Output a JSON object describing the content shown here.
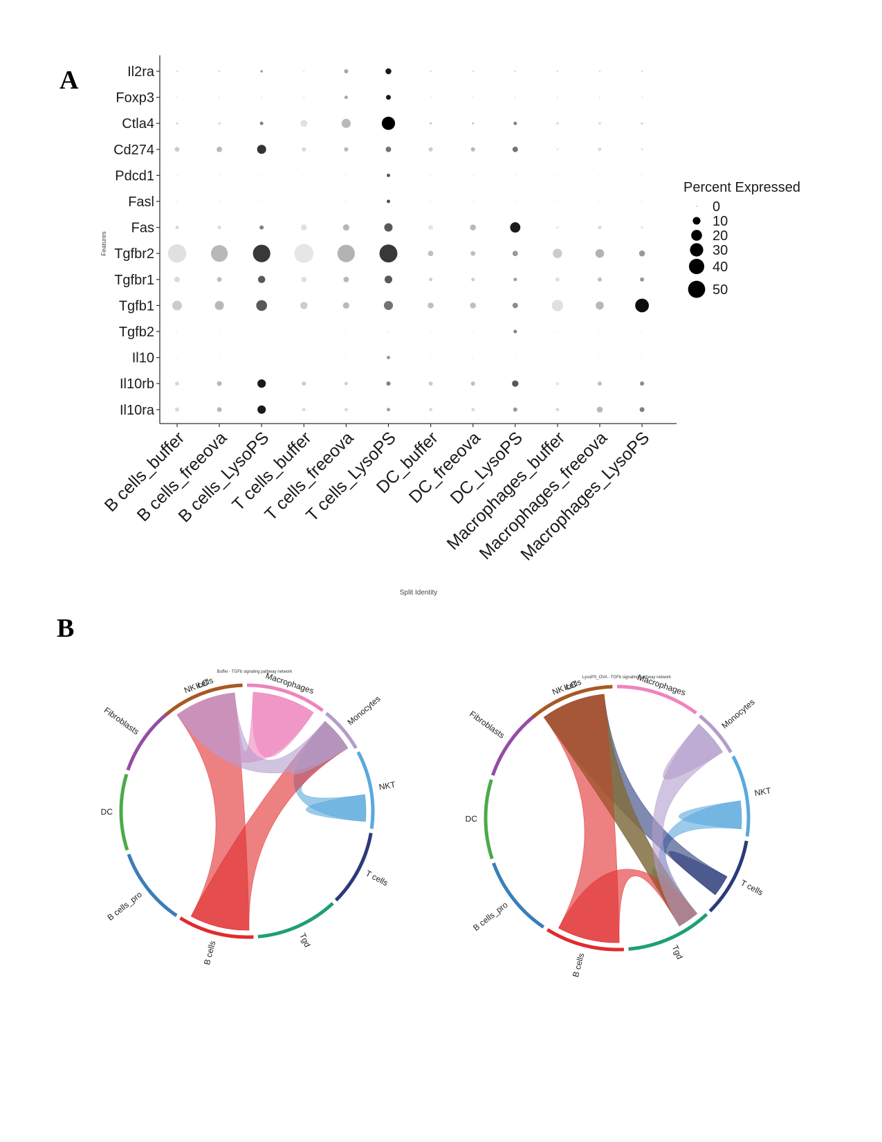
{
  "panels": {
    "a": "A",
    "b": "B"
  },
  "chart_data": [
    {
      "type": "dotplot",
      "panel": "A",
      "xlabel": "Split Identity",
      "ylabel": "Features",
      "categories": [
        "B cells_buffer",
        "B cells_freeova",
        "B cells_LysoPS",
        "T cells_buffer",
        "T cells_freeova",
        "T cells_LysoPS",
        "DC_buffer",
        "DC_freeova",
        "DC_LysoPS",
        "Macrophages_buffer",
        "Macrophages_freeova",
        "Macrophages_LysoPS"
      ],
      "features": [
        "Il2ra",
        "Foxp3",
        "Ctla4",
        "Cd274",
        "Pdcd1",
        "Fasl",
        "Fas",
        "Tgfbr2",
        "Tgfbr1",
        "Tgfb1",
        "Tgfb2",
        "Il10",
        "Il10rb",
        "Il10ra"
      ],
      "legend": {
        "title": "Percent Expressed",
        "sizes": [
          0,
          10,
          20,
          30,
          40,
          50
        ]
      },
      "grid": false,
      "percent_expressed": [
        [
          0.5,
          0.5,
          1,
          0.5,
          3,
          6,
          0.5,
          0.5,
          0.5,
          0.5,
          0.5,
          0.5
        ],
        [
          0.3,
          0.3,
          0.3,
          0.3,
          2,
          4,
          0.3,
          0.3,
          0.3,
          0.3,
          0.3,
          0.3
        ],
        [
          1,
          1,
          2,
          8,
          14,
          30,
          1,
          1,
          2,
          1,
          1,
          1
        ],
        [
          4,
          5,
          14,
          3,
          3,
          5,
          3,
          3,
          5,
          1,
          2,
          1
        ],
        [
          0.2,
          0.2,
          0.2,
          0.2,
          0.3,
          2,
          0.2,
          0.2,
          0.2,
          0.2,
          0.2,
          0.2
        ],
        [
          0.2,
          0.2,
          0.2,
          0.2,
          0.3,
          2,
          0.2,
          0.2,
          0.2,
          0.2,
          0.2,
          0.2
        ],
        [
          2,
          2,
          3,
          6,
          7,
          12,
          4,
          6,
          18,
          1,
          2,
          1
        ],
        [
          57,
          48,
          52,
          62,
          52,
          55,
          5,
          4,
          5,
          15,
          13,
          6
        ],
        [
          5,
          4,
          9,
          5,
          5,
          10,
          2,
          2,
          2,
          3,
          3,
          3
        ],
        [
          16,
          14,
          20,
          9,
          7,
          14,
          6,
          6,
          5,
          22,
          11,
          32
        ],
        [
          0.2,
          0.2,
          0.2,
          0.2,
          0.2,
          0.3,
          0.2,
          0.2,
          2,
          0.2,
          0.2,
          0.2
        ],
        [
          0.2,
          0.2,
          0.2,
          0.2,
          0.2,
          2,
          0.2,
          0.2,
          0.2,
          0.2,
          0.2,
          0.2
        ],
        [
          3,
          4,
          12,
          3,
          2,
          3,
          3,
          3,
          7,
          2,
          3,
          3
        ],
        [
          3,
          4,
          12,
          2,
          2,
          2,
          2,
          2,
          3,
          2,
          6,
          4
        ]
      ],
      "avg_expression_gray": [
        [
          0.85,
          0.85,
          0.6,
          0.9,
          0.65,
          0.1,
          0.85,
          0.85,
          0.85,
          0.85,
          0.85,
          0.85
        ],
        [
          0.85,
          0.85,
          0.85,
          0.85,
          0.65,
          0.1,
          0.85,
          0.85,
          0.85,
          0.85,
          0.85,
          0.85
        ],
        [
          0.85,
          0.85,
          0.5,
          0.88,
          0.72,
          0.0,
          0.8,
          0.8,
          0.5,
          0.85,
          0.85,
          0.85
        ],
        [
          0.8,
          0.72,
          0.2,
          0.85,
          0.72,
          0.45,
          0.8,
          0.72,
          0.45,
          0.92,
          0.85,
          0.9
        ],
        [
          0.9,
          0.9,
          0.9,
          0.9,
          0.9,
          0.35,
          0.9,
          0.9,
          0.9,
          0.9,
          0.9,
          0.9
        ],
        [
          0.9,
          0.9,
          0.9,
          0.9,
          0.9,
          0.3,
          0.9,
          0.9,
          0.9,
          0.9,
          0.9,
          0.9
        ],
        [
          0.85,
          0.85,
          0.5,
          0.88,
          0.72,
          0.35,
          0.9,
          0.72,
          0.1,
          0.9,
          0.85,
          0.9
        ],
        [
          0.88,
          0.72,
          0.22,
          0.9,
          0.7,
          0.22,
          0.75,
          0.75,
          0.6,
          0.8,
          0.7,
          0.6
        ],
        [
          0.85,
          0.75,
          0.35,
          0.88,
          0.72,
          0.35,
          0.8,
          0.8,
          0.6,
          0.88,
          0.75,
          0.6
        ],
        [
          0.8,
          0.72,
          0.35,
          0.8,
          0.72,
          0.45,
          0.75,
          0.75,
          0.55,
          0.88,
          0.72,
          0.05
        ],
        [
          0.9,
          0.9,
          0.9,
          0.9,
          0.9,
          0.85,
          0.9,
          0.9,
          0.5,
          0.9,
          0.9,
          0.9
        ],
        [
          0.9,
          0.9,
          0.9,
          0.9,
          0.9,
          0.6,
          0.9,
          0.9,
          0.9,
          0.9,
          0.9,
          0.9
        ],
        [
          0.85,
          0.72,
          0.1,
          0.8,
          0.8,
          0.5,
          0.8,
          0.75,
          0.35,
          0.9,
          0.75,
          0.55
        ],
        [
          0.85,
          0.72,
          0.1,
          0.85,
          0.85,
          0.6,
          0.85,
          0.85,
          0.6,
          0.85,
          0.72,
          0.5
        ]
      ]
    },
    {
      "type": "chord",
      "panel": "B-left",
      "title": "Buffer - TGFb signaling pathway network",
      "sectors": [
        {
          "name": "NKT",
          "color": "#5aa9dc"
        },
        {
          "name": "T cells",
          "color": "#2b3a7a"
        },
        {
          "name": "Tgd",
          "color": "#1f9e78"
        },
        {
          "name": "B cells",
          "color": "#e12b2d"
        },
        {
          "name": "B cells_pro",
          "color": "#3a7eb8"
        },
        {
          "name": "DC",
          "color": "#4caa48"
        },
        {
          "name": "Fibroblasts",
          "color": "#954ca6"
        },
        {
          "name": "ILC",
          "color": "#f08c14"
        },
        {
          "name": "Macrophages",
          "color": "#ee84bd"
        },
        {
          "name": "Monocytes",
          "color": "#b39ccb"
        },
        {
          "name": "NK cells",
          "color": "#a65927"
        }
      ],
      "links": [
        {
          "source": "NKT",
          "target": "NKT",
          "color": "#5aa9dc"
        },
        {
          "source": "NKT",
          "target": "Monocytes",
          "color": "#5aa9dc"
        },
        {
          "source": "NK cells",
          "target": "B cells",
          "color": "#e12b2d"
        },
        {
          "source": "Monocytes",
          "target": "B cells",
          "color": "#e12b2d"
        },
        {
          "source": "Macrophages",
          "target": "Macrophages",
          "color": "#ee84bd"
        },
        {
          "source": "Macrophages",
          "target": "NK cells",
          "color": "#ee84bd"
        },
        {
          "source": "Monocytes",
          "target": "Monocytes",
          "color": "#b39ccb"
        },
        {
          "source": "Monocytes",
          "target": "NK cells",
          "color": "#b39ccb"
        }
      ]
    },
    {
      "type": "chord",
      "panel": "B-right",
      "title": "LysoPS_OVA - TGFb signaling pathway network",
      "sectors": [
        {
          "name": "NKT",
          "color": "#5aa9dc"
        },
        {
          "name": "T cells",
          "color": "#2b3a7a"
        },
        {
          "name": "Tgd",
          "color": "#1f9e78"
        },
        {
          "name": "B cells",
          "color": "#e12b2d"
        },
        {
          "name": "B cells_pro",
          "color": "#3a7eb8"
        },
        {
          "name": "DC",
          "color": "#4caa48"
        },
        {
          "name": "Fibroblasts",
          "color": "#954ca6"
        },
        {
          "name": "ILC",
          "color": "#f08c14"
        },
        {
          "name": "Macrophages",
          "color": "#ee84bd"
        },
        {
          "name": "Monocytes",
          "color": "#b39ccb"
        },
        {
          "name": "NK cells",
          "color": "#a65927"
        }
      ],
      "links": [
        {
          "source": "NKT",
          "target": "NKT",
          "color": "#5aa9dc"
        },
        {
          "source": "NKT",
          "target": "Tgd",
          "color": "#5aa9dc"
        },
        {
          "source": "T cells",
          "target": "T cells",
          "color": "#2b3a7a"
        },
        {
          "source": "T cells",
          "target": "NK cells",
          "color": "#2b3a7a"
        },
        {
          "source": "Tgd",
          "target": "NK cells",
          "color": "#1f9e78"
        },
        {
          "source": "Tgd",
          "target": "Tgd",
          "color": "#1f9e78"
        },
        {
          "source": "NK cells",
          "target": "B cells",
          "color": "#e12b2d"
        },
        {
          "source": "B cells",
          "target": "Tgd",
          "color": "#e12b2d"
        },
        {
          "source": "NK cells",
          "target": "Tgd",
          "color": "#a65927"
        },
        {
          "source": "Monocytes",
          "target": "Monocytes",
          "color": "#b39ccb"
        },
        {
          "source": "Monocytes",
          "target": "Tgd",
          "color": "#b39ccb"
        }
      ]
    }
  ]
}
